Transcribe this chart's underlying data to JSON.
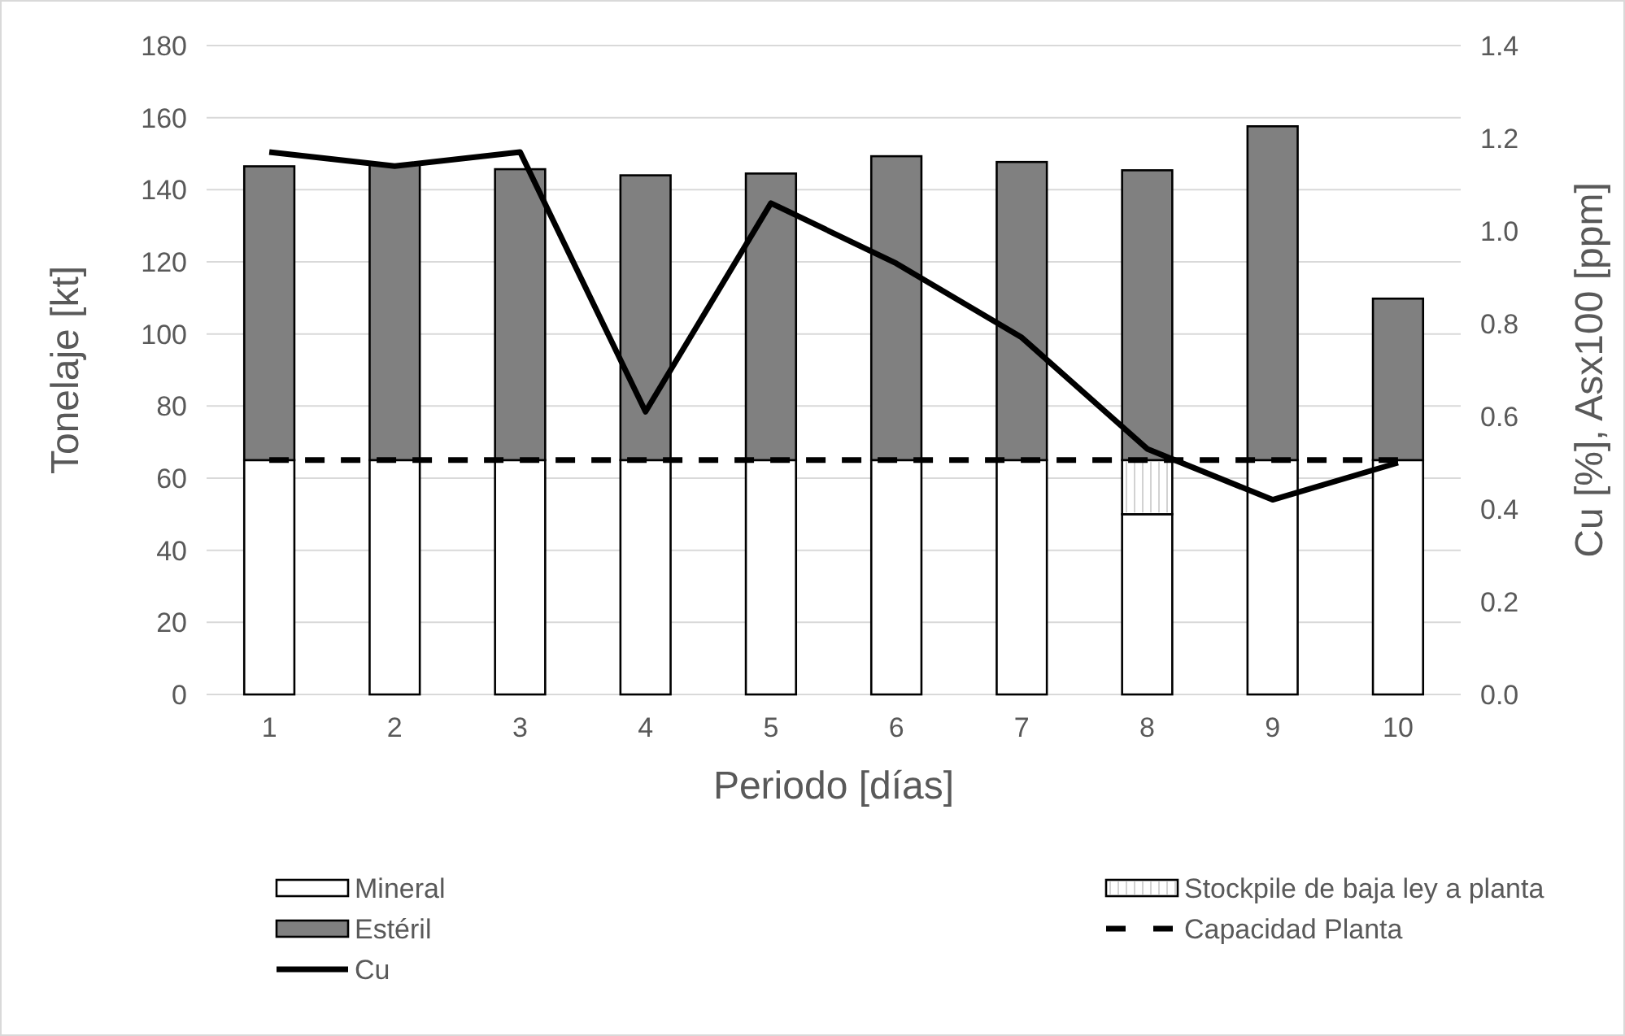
{
  "chart_data": {
    "type": "bar",
    "stacked": true,
    "xlabel": "Periodo [días]",
    "ylabel": "Tonelaje [kt]",
    "y2label": "Cu [%], Asx100 [ppm]",
    "categories": [
      "1",
      "2",
      "3",
      "4",
      "5",
      "6",
      "7",
      "8",
      "9",
      "10"
    ],
    "series": [
      {
        "name": "Mineral",
        "color": "#ffffff",
        "values": [
          65,
          65,
          65,
          65,
          65,
          65,
          65,
          50,
          65,
          65
        ]
      },
      {
        "name": "Stockpile de baja ley a planta",
        "color": "#ffffff",
        "values": [
          null,
          null,
          null,
          null,
          null,
          null,
          null,
          15,
          null,
          null
        ]
      },
      {
        "name": "Estéril",
        "color": "#808080",
        "values": [
          81.5,
          82,
          80.7,
          79,
          79.5,
          84.3,
          82.7,
          80.4,
          92.6,
          44.8
        ]
      },
      {
        "name": "Capacidad Planta",
        "type": "line",
        "color": "#000000",
        "line_style": "dashed",
        "values": [
          65,
          65,
          65,
          65,
          65,
          65,
          65,
          65,
          65,
          65
        ]
      },
      {
        "name": "Cu",
        "type": "line",
        "axis": "y2",
        "color": "#000000",
        "line_style": "solid",
        "values": [
          1.17,
          1.14,
          1.17,
          0.61,
          1.06,
          0.93,
          0.77,
          0.53,
          0.42,
          0.5
        ]
      }
    ],
    "ylim": [
      0,
      180
    ],
    "yticks": [
      0,
      20,
      40,
      60,
      80,
      100,
      120,
      140,
      160,
      180
    ],
    "y2lim": [
      0,
      1.4
    ],
    "y2ticks": [
      {
        "value": 0,
        "label": "0.0"
      },
      {
        "value": 0.2,
        "label": "0.2"
      },
      {
        "value": 0.4,
        "label": "0.4"
      },
      {
        "value": 0.6,
        "label": "0.6"
      },
      {
        "value": 0.8,
        "label": "0.8"
      },
      {
        "value": 1,
        "label": "1.0"
      },
      {
        "value": 1.2,
        "label": "1.2"
      },
      {
        "value": 1.4,
        "label": "1.4"
      }
    ],
    "grid": "y",
    "legend": "bottom"
  }
}
